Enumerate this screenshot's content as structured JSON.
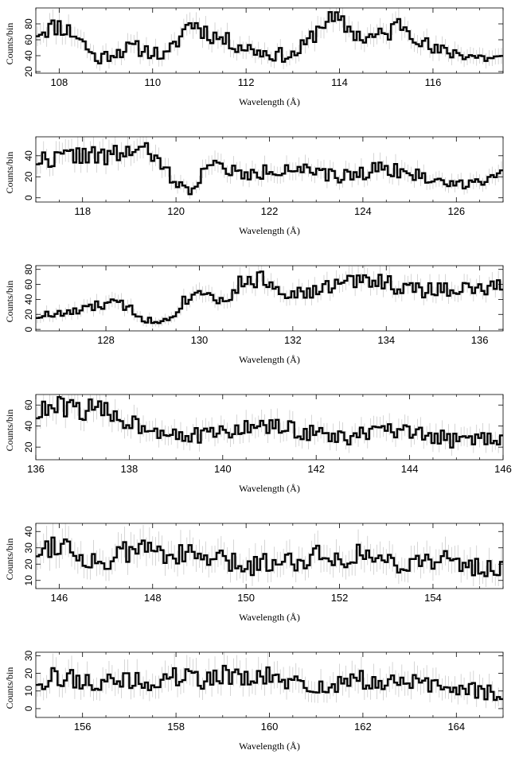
{
  "chart_data": [
    {
      "type": "line",
      "xlabel": "Wavelength (Å)",
      "ylabel": "Counts/bin",
      "xlim": [
        107.5,
        117.5
      ],
      "ylim": [
        18,
        100
      ],
      "xticks": [
        108,
        110,
        112,
        114,
        116
      ],
      "yticks": [
        20,
        40,
        60,
        80
      ],
      "anchors": [
        [
          107.5,
          70
        ],
        [
          108.0,
          78
        ],
        [
          108.4,
          65
        ],
        [
          108.8,
          35
        ],
        [
          109.2,
          45
        ],
        [
          109.6,
          50
        ],
        [
          110.0,
          45
        ],
        [
          110.3,
          38
        ],
        [
          110.8,
          83
        ],
        [
          111.2,
          68
        ],
        [
          111.6,
          58
        ],
        [
          112.0,
          50
        ],
        [
          112.5,
          42
        ],
        [
          113.0,
          40
        ],
        [
          113.3,
          55
        ],
        [
          113.7,
          86
        ],
        [
          114.0,
          82
        ],
        [
          114.5,
          62
        ],
        [
          115.0,
          66
        ],
        [
          115.3,
          82
        ],
        [
          115.6,
          68
        ],
        [
          116.0,
          46
        ],
        [
          116.5,
          44
        ],
        [
          117.0,
          38
        ],
        [
          117.5,
          36
        ]
      ],
      "seed": 11
    },
    {
      "type": "line",
      "xlabel": "Wavelength (Å)",
      "ylabel": "Counts/bin",
      "xlim": [
        117,
        127
      ],
      "ylim": [
        -4,
        58
      ],
      "xticks": [
        118,
        120,
        122,
        124,
        126
      ],
      "yticks": [
        0,
        20,
        40
      ],
      "anchors": [
        [
          117.0,
          36
        ],
        [
          117.5,
          38
        ],
        [
          118.0,
          42
        ],
        [
          118.5,
          38
        ],
        [
          119.0,
          45
        ],
        [
          119.4,
          44
        ],
        [
          119.7,
          30
        ],
        [
          120.0,
          15
        ],
        [
          120.3,
          5
        ],
        [
          120.6,
          28
        ],
        [
          121.0,
          30
        ],
        [
          121.5,
          20
        ],
        [
          122.0,
          26
        ],
        [
          122.5,
          30
        ],
        [
          123.0,
          22
        ],
        [
          123.5,
          20
        ],
        [
          124.0,
          24
        ],
        [
          124.5,
          30
        ],
        [
          125.0,
          22
        ],
        [
          125.5,
          18
        ],
        [
          126.0,
          12
        ],
        [
          126.5,
          18
        ],
        [
          127.0,
          20
        ]
      ],
      "seed": 22
    },
    {
      "type": "line",
      "xlabel": "Wavelength (Å)",
      "ylabel": "Counts/bin",
      "xlim": [
        126.5,
        136.5
      ],
      "ylim": [
        -2,
        85
      ],
      "xticks": [
        128,
        130,
        132,
        134,
        136
      ],
      "yticks": [
        0,
        20,
        40,
        60,
        80
      ],
      "anchors": [
        [
          126.5,
          18
        ],
        [
          127.0,
          20
        ],
        [
          127.5,
          25
        ],
        [
          128.0,
          35
        ],
        [
          128.5,
          30
        ],
        [
          128.8,
          15
        ],
        [
          129.1,
          8
        ],
        [
          129.4,
          20
        ],
        [
          129.8,
          45
        ],
        [
          130.2,
          55
        ],
        [
          130.5,
          35
        ],
        [
          130.9,
          62
        ],
        [
          131.3,
          68
        ],
        [
          131.8,
          52
        ],
        [
          132.3,
          46
        ],
        [
          132.8,
          58
        ],
        [
          133.3,
          64
        ],
        [
          133.8,
          68
        ],
        [
          134.3,
          55
        ],
        [
          134.8,
          52
        ],
        [
          135.5,
          55
        ],
        [
          136.0,
          52
        ],
        [
          136.5,
          58
        ]
      ],
      "seed": 33
    },
    {
      "type": "line",
      "xlabel": "Wavelength (Å)",
      "ylabel": "Counts/bin",
      "xlim": [
        136,
        146
      ],
      "ylim": [
        8,
        70
      ],
      "xticks": [
        136,
        138,
        140,
        142,
        144,
        146
      ],
      "yticks": [
        20,
        40,
        60
      ],
      "anchors": [
        [
          136.0,
          52
        ],
        [
          136.5,
          58
        ],
        [
          137.0,
          56
        ],
        [
          137.5,
          54
        ],
        [
          138.0,
          44
        ],
        [
          138.5,
          38
        ],
        [
          139.0,
          34
        ],
        [
          139.5,
          30
        ],
        [
          140.0,
          34
        ],
        [
          140.5,
          38
        ],
        [
          141.0,
          40
        ],
        [
          141.5,
          36
        ],
        [
          142.0,
          34
        ],
        [
          142.5,
          28
        ],
        [
          143.0,
          32
        ],
        [
          143.5,
          36
        ],
        [
          144.0,
          32
        ],
        [
          144.5,
          30
        ],
        [
          145.0,
          26
        ],
        [
          145.5,
          28
        ],
        [
          146.0,
          30
        ]
      ],
      "seed": 44
    },
    {
      "type": "line",
      "xlabel": "Wavelength (Å)",
      "ylabel": "Counts/bin",
      "xlim": [
        145.5,
        155.5
      ],
      "ylim": [
        5,
        45
      ],
      "xticks": [
        146,
        148,
        150,
        152,
        154
      ],
      "yticks": [
        10,
        20,
        30,
        40
      ],
      "anchors": [
        [
          145.5,
          28
        ],
        [
          146.0,
          34
        ],
        [
          146.5,
          24
        ],
        [
          147.0,
          20
        ],
        [
          147.5,
          28
        ],
        [
          148.0,
          30
        ],
        [
          148.5,
          26
        ],
        [
          149.0,
          24
        ],
        [
          149.5,
          22
        ],
        [
          150.0,
          18
        ],
        [
          150.5,
          22
        ],
        [
          151.0,
          22
        ],
        [
          151.5,
          26
        ],
        [
          152.0,
          24
        ],
        [
          152.5,
          26
        ],
        [
          153.0,
          22
        ],
        [
          153.5,
          20
        ],
        [
          154.0,
          24
        ],
        [
          154.5,
          20
        ],
        [
          155.0,
          18
        ],
        [
          155.5,
          17
        ]
      ],
      "seed": 55
    },
    {
      "type": "line",
      "xlabel": "Wavelength (Å)",
      "ylabel": "Counts/bin",
      "xlim": [
        155,
        165
      ],
      "ylim": [
        -5,
        32
      ],
      "xticks": [
        156,
        158,
        160,
        162,
        164
      ],
      "yticks": [
        0,
        10,
        20,
        30
      ],
      "anchors": [
        [
          155.0,
          16
        ],
        [
          155.5,
          18
        ],
        [
          156.0,
          16
        ],
        [
          156.5,
          14
        ],
        [
          157.0,
          16
        ],
        [
          157.5,
          14
        ],
        [
          158.0,
          18
        ],
        [
          158.5,
          16
        ],
        [
          159.0,
          20
        ],
        [
          159.5,
          16
        ],
        [
          160.0,
          18
        ],
        [
          160.5,
          14
        ],
        [
          161.0,
          12
        ],
        [
          161.5,
          14
        ],
        [
          162.0,
          16
        ],
        [
          162.5,
          14
        ],
        [
          163.0,
          16
        ],
        [
          163.5,
          12
        ],
        [
          164.0,
          12
        ],
        [
          164.5,
          10
        ],
        [
          165.0,
          8
        ]
      ],
      "seed": 66
    }
  ]
}
